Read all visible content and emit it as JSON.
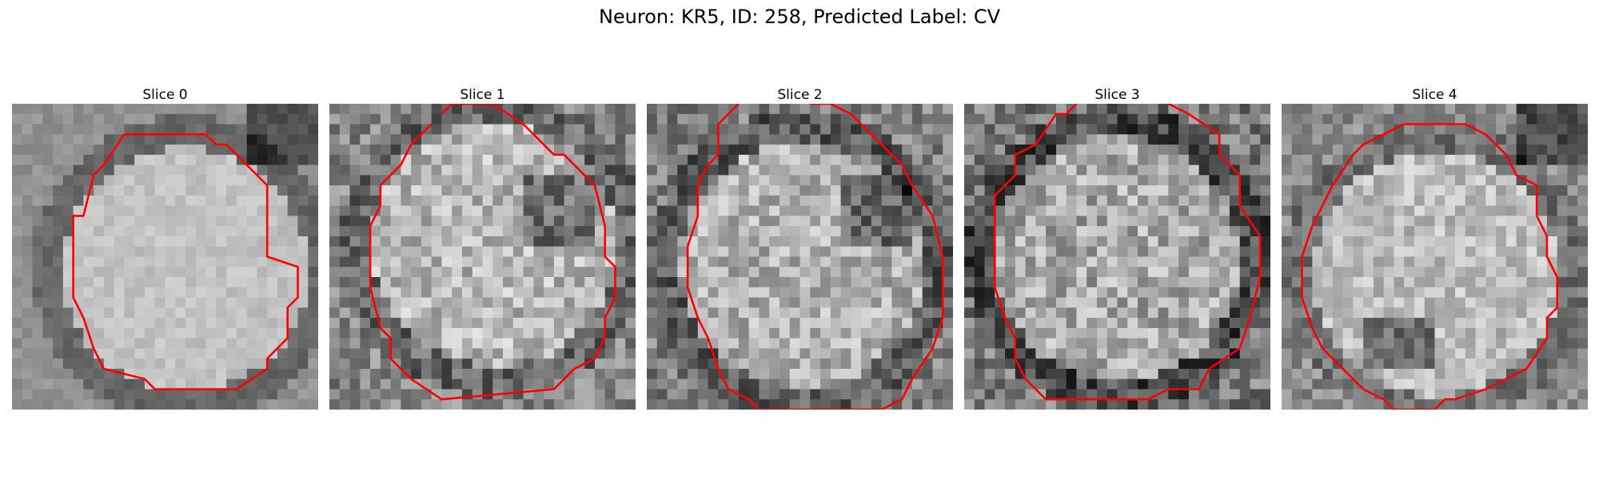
{
  "figure": {
    "title": "Neuron: KR5, ID: 258, Predicted Label: CV"
  },
  "panels": [
    {
      "title": "Slice 0",
      "seed": 11,
      "base": 0.62,
      "ring_dark": 0.32,
      "inner_noise": 0.1,
      "texture": 0.06
    },
    {
      "title": "Slice 1",
      "seed": 23,
      "base": 0.58,
      "ring_dark": 0.28,
      "inner_noise": 0.22,
      "texture": 0.18
    },
    {
      "title": "Slice 2",
      "seed": 37,
      "base": 0.55,
      "ring_dark": 0.3,
      "inner_noise": 0.22,
      "texture": 0.18
    },
    {
      "title": "Slice 3",
      "seed": 41,
      "base": 0.52,
      "ring_dark": 0.34,
      "inner_noise": 0.24,
      "texture": 0.2
    },
    {
      "title": "Slice 4",
      "seed": 53,
      "base": 0.6,
      "ring_dark": 0.26,
      "inner_noise": 0.18,
      "texture": 0.14
    }
  ],
  "colors": {
    "contour": "#ff0000",
    "background": "#ffffff"
  }
}
